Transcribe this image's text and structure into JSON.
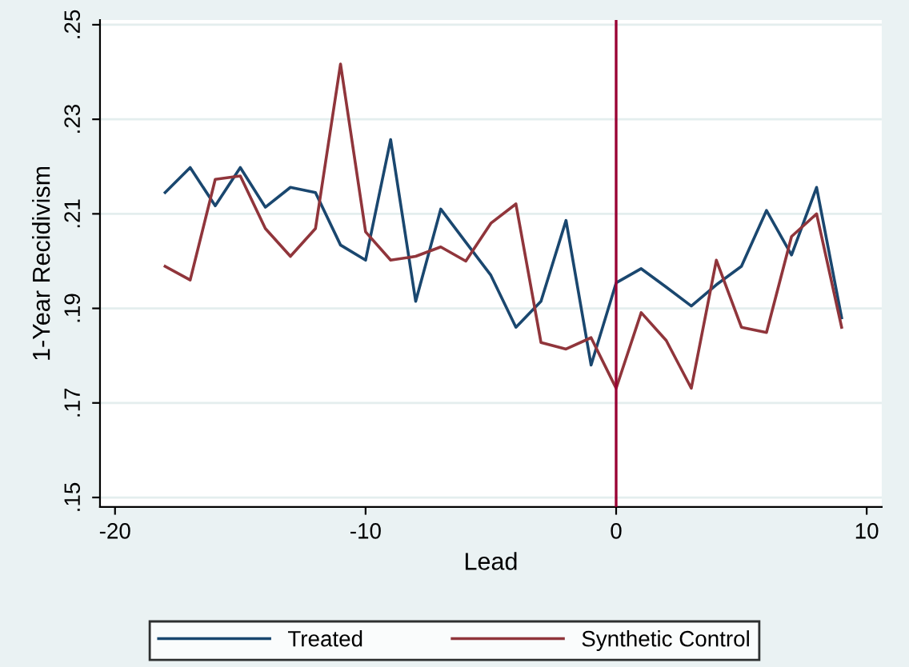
{
  "chart_data": {
    "type": "line",
    "xlabel": "Lead",
    "ylabel": "1-Year Recidivism",
    "x": [
      -18,
      -17,
      -16,
      -15,
      -14,
      -13,
      -12,
      -11,
      -10,
      -9,
      -8,
      -7,
      -6,
      -5,
      -4,
      -3,
      -2,
      -1,
      0,
      1,
      2,
      3,
      4,
      5,
      6,
      7,
      8,
      9
    ],
    "series": [
      {
        "name": "Treated",
        "color": "#1a476f",
        "values": [
          0.2145,
          0.2198,
          0.2117,
          0.2198,
          0.2114,
          0.2156,
          0.2145,
          0.2034,
          0.2002,
          0.2257,
          0.1915,
          0.211,
          0.204,
          0.197,
          0.186,
          0.1915,
          0.2086,
          0.178,
          0.1954,
          0.1984,
          0.1945,
          0.1905,
          0.195,
          0.1989,
          0.2107,
          0.2013,
          0.2156,
          0.188
        ]
      },
      {
        "name": "Synthetic Control",
        "color": "#90353b",
        "values": [
          0.1989,
          0.196,
          0.2173,
          0.218,
          0.2069,
          0.201,
          0.2069,
          0.2417,
          0.2062,
          0.2002,
          0.201,
          0.203,
          0.2,
          0.208,
          0.2121,
          0.1828,
          0.1814,
          0.1838,
          0.1731,
          0.1891,
          0.1832,
          0.1731,
          0.2002,
          0.186,
          0.1849,
          0.2052,
          0.21,
          0.186
        ]
      }
    ],
    "xlim": [
      -20.6,
      10.6
    ],
    "xticks": [
      -20,
      -10,
      0,
      10
    ],
    "ylim": [
      0.148,
      0.251
    ],
    "yticks": [
      {
        "value": 0.15,
        "label": ".15"
      },
      {
        "value": 0.17,
        "label": ".17"
      },
      {
        "value": 0.19,
        "label": ".19"
      },
      {
        "value": 0.21,
        "label": ".21"
      },
      {
        "value": 0.23,
        "label": ".23"
      },
      {
        "value": 0.25,
        "label": ".25"
      }
    ],
    "ref_lines": [
      {
        "axis": "x",
        "value": 0,
        "color": "#990033"
      }
    ],
    "grid": "y",
    "legend": "bottom",
    "marker": "none",
    "line_style": "solid"
  }
}
